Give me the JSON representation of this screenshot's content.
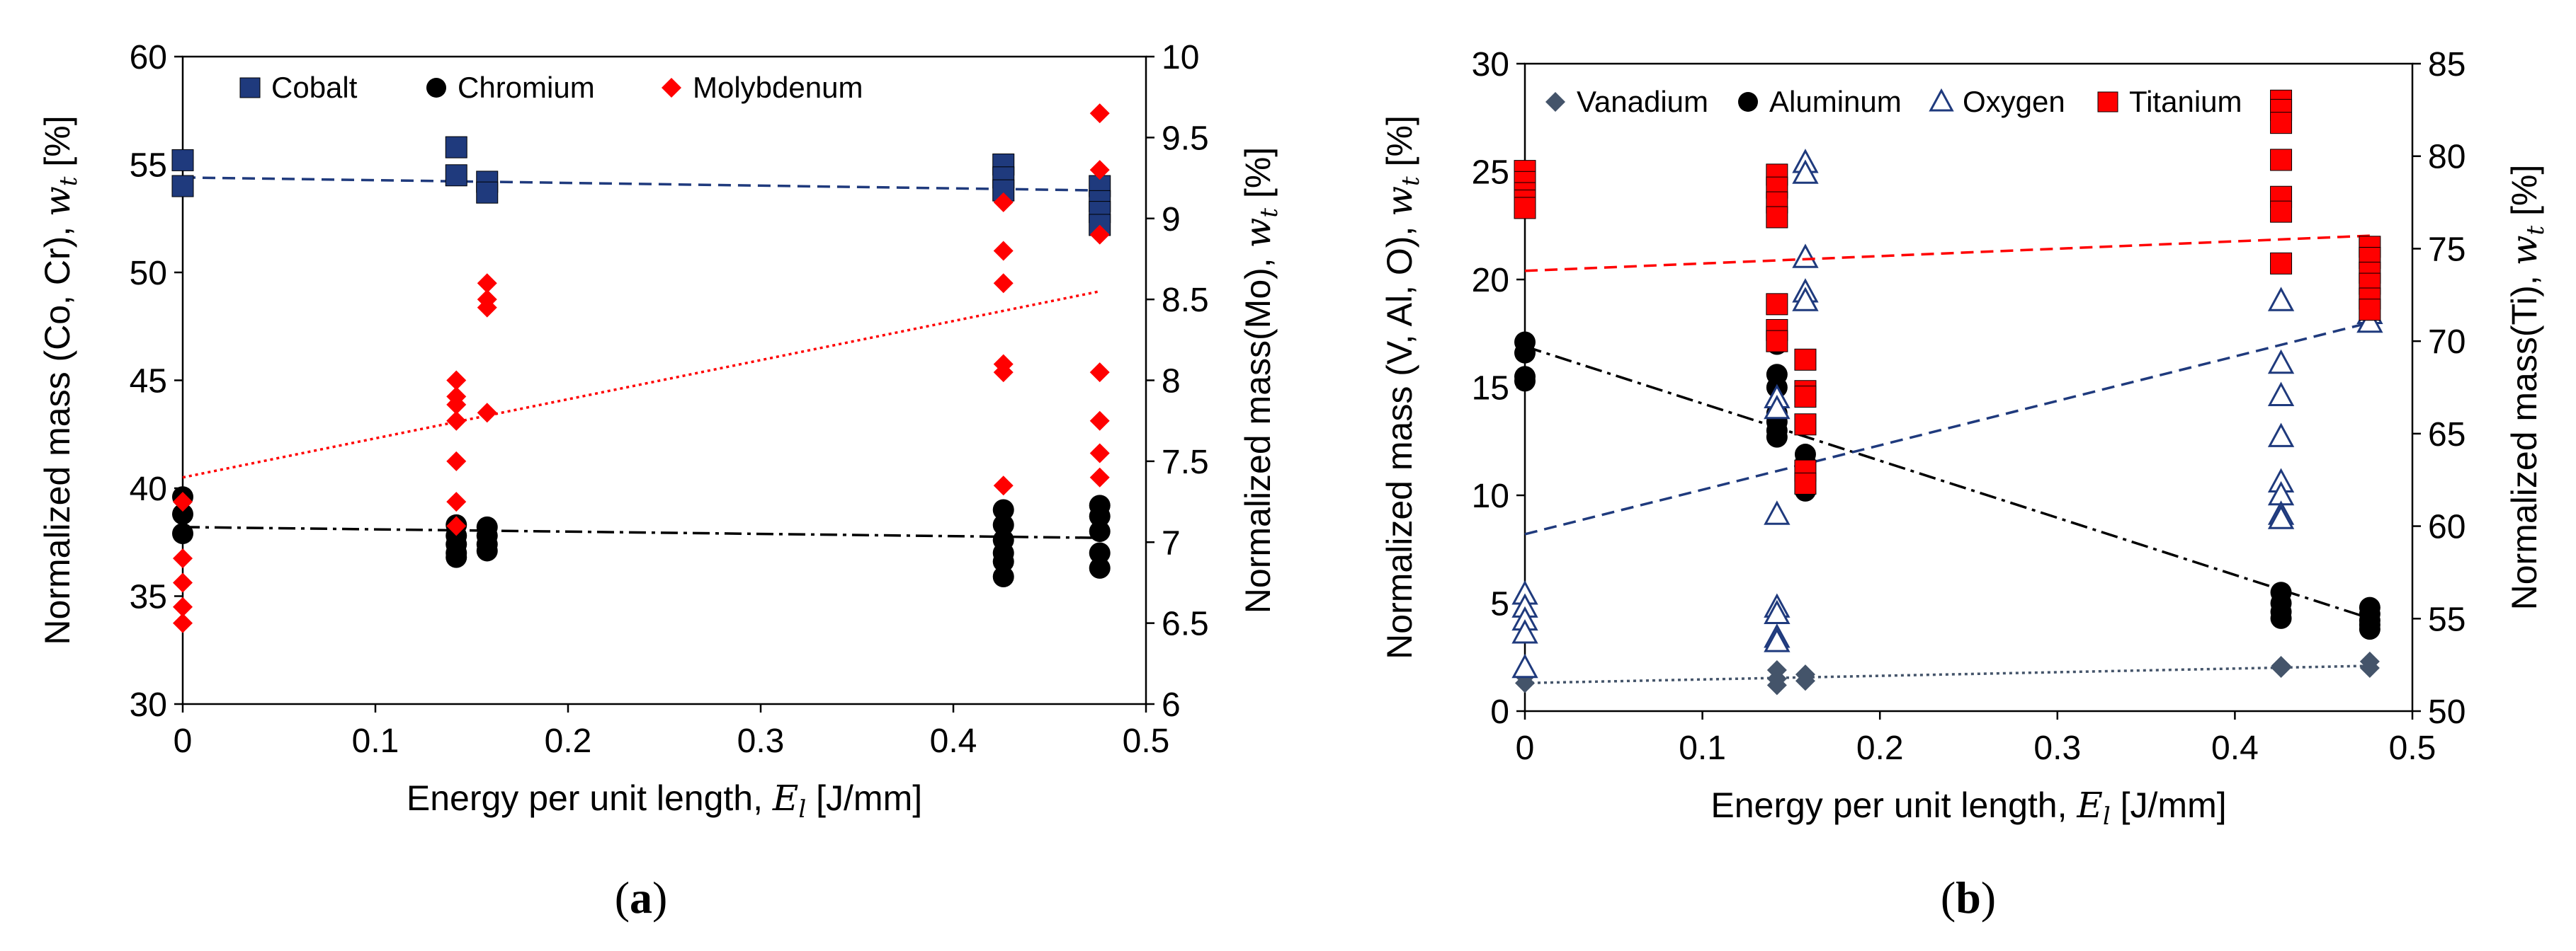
{
  "chart_data": [
    {
      "type": "scatter",
      "panel_label": {
        "open": "(",
        "letter": "a",
        "close": ")"
      },
      "xlabel": {
        "prefix": "Energy per unit length, ",
        "symbol": "E",
        "sub": "l",
        "suffix": " [J/mm]"
      },
      "ylabel_left": {
        "prefix": "Normalized mass (Co, Cr), ",
        "symbol": "w",
        "sub": "t",
        "suffix": " [%]"
      },
      "ylabel_right": {
        "prefix": "Normalized mass(Mo), ",
        "symbol": "w",
        "sub": "t",
        "suffix": " [%]"
      },
      "xlim": [
        0,
        0.5
      ],
      "ylim_left": [
        30,
        60
      ],
      "ylim_right": [
        6,
        10
      ],
      "xticks": [
        "0",
        "0.1",
        "0.2",
        "0.3",
        "0.4",
        "0.5"
      ],
      "yticks_left": [
        "30",
        "35",
        "40",
        "45",
        "50",
        "55",
        "60"
      ],
      "yticks_right": [
        "6",
        "6.5",
        "7",
        "7.5",
        "8",
        "8.5",
        "9",
        "9.5",
        "10"
      ],
      "grid": false,
      "legend_position": "top",
      "series": [
        {
          "name": "Cobalt",
          "axis": "left",
          "marker": "square",
          "color": "#1f3a7d",
          "x": [
            0,
            0,
            0.142,
            0.142,
            0.158,
            0.158,
            0.426,
            0.426,
            0.426,
            0.476,
            0.476,
            0.476,
            0.476
          ],
          "y": [
            55.2,
            54.0,
            55.8,
            54.5,
            54.2,
            53.7,
            55.0,
            54.4,
            53.8,
            54.0,
            53.3,
            52.8,
            52.2
          ],
          "trend": {
            "x": [
              0,
              0.476
            ],
            "y": [
              54.4,
              53.8
            ],
            "dash": "18,10"
          }
        },
        {
          "name": "Chromium",
          "axis": "left",
          "marker": "circle",
          "color": "#000000",
          "x": [
            0,
            0,
            0,
            0.142,
            0.142,
            0.142,
            0.142,
            0.142,
            0.158,
            0.158,
            0.158,
            0.158,
            0.426,
            0.426,
            0.426,
            0.426,
            0.426,
            0.426,
            0.476,
            0.476,
            0.476,
            0.476,
            0.476
          ],
          "y": [
            39.6,
            38.8,
            37.9,
            38.3,
            37.8,
            37.4,
            37.0,
            36.8,
            38.2,
            37.8,
            37.4,
            37.1,
            39.0,
            38.3,
            37.6,
            37.0,
            36.6,
            35.9,
            39.2,
            38.7,
            38.0,
            37.0,
            36.3
          ],
          "trend": {
            "x": [
              0,
              0.476
            ],
            "y": [
              38.2,
              37.7
            ],
            "dash": "24,8,5,8"
          }
        },
        {
          "name": "Molybdenum",
          "axis": "right",
          "marker": "diamond",
          "color": "#ff0000",
          "x": [
            0,
            0,
            0,
            0,
            0,
            0.142,
            0.142,
            0.142,
            0.142,
            0.142,
            0.142,
            0.142,
            0.158,
            0.158,
            0.158,
            0.158,
            0.426,
            0.426,
            0.426,
            0.426,
            0.426,
            0.426,
            0.476,
            0.476,
            0.476,
            0.476,
            0.476,
            0.476,
            0.476
          ],
          "y": [
            7.25,
            6.9,
            6.75,
            6.6,
            6.5,
            8.0,
            7.9,
            7.85,
            7.75,
            7.5,
            7.25,
            7.1,
            8.6,
            8.5,
            8.45,
            7.8,
            9.1,
            8.8,
            8.6,
            8.1,
            8.05,
            7.35,
            9.65,
            9.3,
            8.9,
            8.05,
            7.75,
            7.55,
            7.4
          ],
          "trend": {
            "x": [
              0,
              0.476
            ],
            "y": [
              7.4,
              8.55
            ],
            "dash": "4,5"
          }
        }
      ]
    },
    {
      "type": "scatter",
      "panel_label": {
        "open": "(",
        "letter": "b",
        "close": ")"
      },
      "xlabel": {
        "prefix": "Energy per unit length, ",
        "symbol": "E",
        "sub": "l",
        "suffix": " [J/mm]"
      },
      "ylabel_left": {
        "prefix": "Normalized mass (V, Al, O), ",
        "symbol": "w",
        "sub": "t",
        "suffix": " [%]"
      },
      "ylabel_right": {
        "prefix": "Normalized mass(Ti), ",
        "symbol": "w",
        "sub": "t",
        "suffix": " [%]"
      },
      "xlim": [
        0,
        0.5
      ],
      "ylim_left": [
        0,
        30
      ],
      "ylim_right": [
        50,
        85
      ],
      "xticks": [
        "0",
        "0.1",
        "0.2",
        "0.3",
        "0.4",
        "0.5"
      ],
      "yticks_left": [
        "0",
        "5",
        "10",
        "15",
        "20",
        "25",
        "30"
      ],
      "yticks_right": [
        "50",
        "55",
        "60",
        "65",
        "70",
        "75",
        "80",
        "85"
      ],
      "grid": false,
      "legend_position": "top",
      "series": [
        {
          "name": "Vanadium",
          "axis": "left",
          "marker": "diamond",
          "color": "#44546a",
          "x": [
            0,
            0,
            0.142,
            0.142,
            0.142,
            0.158,
            0.158,
            0.426,
            0.426,
            0.476,
            0.476
          ],
          "y": [
            1.6,
            1.3,
            1.9,
            1.5,
            1.2,
            1.7,
            1.4,
            2.1,
            2.0,
            2.3,
            2.0
          ],
          "trend": {
            "x": [
              0,
              0.476
            ],
            "y": [
              1.3,
              2.1
            ],
            "dash": "4,5"
          }
        },
        {
          "name": "Aluminum",
          "axis": "left",
          "marker": "circle",
          "color": "#000000",
          "x": [
            0,
            0,
            0,
            0,
            0.142,
            0.142,
            0.142,
            0.142,
            0.142,
            0.142,
            0.142,
            0.158,
            0.158,
            0.158,
            0.158,
            0.158,
            0.158,
            0.426,
            0.426,
            0.426,
            0.426,
            0.476,
            0.476,
            0.476,
            0.476,
            0.476
          ],
          "y": [
            17.1,
            16.6,
            15.5,
            15.3,
            17.0,
            15.6,
            15.0,
            13.8,
            13.4,
            13.0,
            12.7,
            11.9,
            11.5,
            11.0,
            10.6,
            10.4,
            10.2,
            5.5,
            5.0,
            4.6,
            4.3,
            4.8,
            4.5,
            4.2,
            4.0,
            3.8
          ],
          "trend": {
            "x": [
              0,
              0.476
            ],
            "y": [
              16.9,
              4.3
            ],
            "dash": "24,8,5,8"
          }
        },
        {
          "name": "Oxygen",
          "axis": "left",
          "marker": "triangle",
          "color": "#1f3a7d",
          "x": [
            0,
            0,
            0,
            0,
            0,
            0.142,
            0.142,
            0.142,
            0.142,
            0.142,
            0.142,
            0.142,
            0.158,
            0.158,
            0.158,
            0.158,
            0.158,
            0.426,
            0.426,
            0.426,
            0.426,
            0.426,
            0.426,
            0.426,
            0.426,
            0.476,
            0.476
          ],
          "y": [
            5.4,
            4.8,
            4.2,
            3.6,
            2.0,
            14.5,
            14.0,
            9.1,
            4.8,
            4.5,
            3.4,
            3.2,
            25.4,
            24.9,
            21.0,
            19.4,
            19.0,
            19.0,
            16.1,
            14.6,
            12.7,
            10.6,
            10.0,
            9.1,
            8.9,
            18.4,
            18.0
          ],
          "trend": {
            "x": [
              0,
              0.476
            ],
            "y": [
              8.2,
              18.0
            ],
            "dash": "18,10"
          }
        },
        {
          "name": "Titanium",
          "axis": "right",
          "marker": "square",
          "color": "#ff0000",
          "x": [
            0,
            0,
            0,
            0,
            0,
            0.142,
            0.142,
            0.142,
            0.142,
            0.142,
            0.142,
            0.142,
            0.158,
            0.158,
            0.158,
            0.158,
            0.158,
            0.158,
            0.426,
            0.426,
            0.426,
            0.426,
            0.426,
            0.426,
            0.426,
            0.476,
            0.476,
            0.476,
            0.476,
            0.476,
            0.476
          ],
          "y": [
            79.2,
            78.6,
            78.0,
            77.6,
            77.2,
            79.0,
            78.3,
            77.5,
            76.7,
            72.0,
            70.6,
            70.0,
            69.0,
            67.3,
            67.0,
            65.5,
            63.0,
            62.3,
            83.0,
            82.5,
            81.8,
            79.8,
            77.8,
            77.0,
            74.2,
            75.1,
            74.5,
            73.7,
            73.1,
            72.3,
            71.7
          ],
          "trend": {
            "x": [
              0,
              0.476
            ],
            "y": [
              73.8,
              75.7
            ],
            "dash": "18,10"
          }
        }
      ]
    }
  ]
}
